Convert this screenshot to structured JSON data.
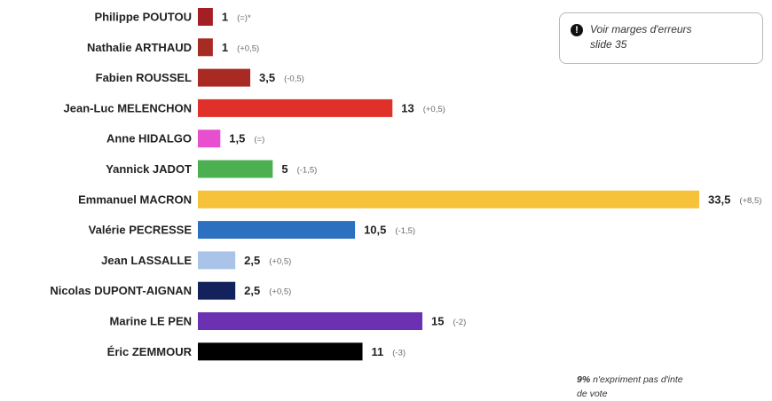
{
  "note": {
    "icon": "exclamation-icon",
    "text_line1": "Voir marges d'erreurs",
    "text_line2": "slide 35"
  },
  "footnote": {
    "bold": "9%",
    "text_line1": "n'expriment pas d'inte",
    "text_line2": "de vote"
  },
  "chart_data": {
    "type": "bar",
    "orientation": "horizontal",
    "categories": [
      "Philippe POUTOU",
      "Nathalie ARTHAUD",
      "Fabien ROUSSEL",
      "Jean-Luc MELENCHON",
      "Anne HIDALGO",
      "Yannick JADOT",
      "Emmanuel MACRON",
      "Valérie PECRESSE",
      "Jean LASSALLE",
      "Nicolas DUPONT-AIGNAN",
      "Marine LE PEN",
      "Éric ZEMMOUR"
    ],
    "values": [
      1,
      1,
      3.5,
      13,
      1.5,
      5,
      33.5,
      10.5,
      2.5,
      2.5,
      15,
      11
    ],
    "value_labels": [
      "1",
      "1",
      "3,5",
      "13",
      "1,5",
      "5",
      "33,5",
      "10,5",
      "2,5",
      "2,5",
      "15",
      "11"
    ],
    "changes": [
      "(=)*",
      "(+0,5)",
      "(-0,5)",
      "(+0,5)",
      "(=)",
      "(-1,5)",
      "(+8,5)",
      "(-1,5)",
      "(+0,5)",
      "(+0,5)",
      "(-2)",
      "(-3)"
    ],
    "colors": [
      "#a31f24",
      "#a62b23",
      "#a82a22",
      "#e0302a",
      "#e84fce",
      "#4caf50",
      "#f5c239",
      "#2b71bf",
      "#a9c4e8",
      "#13215c",
      "#6b31b2",
      "#000000"
    ],
    "xlim": [
      0,
      33.5
    ],
    "grid": false,
    "legend": "none"
  }
}
